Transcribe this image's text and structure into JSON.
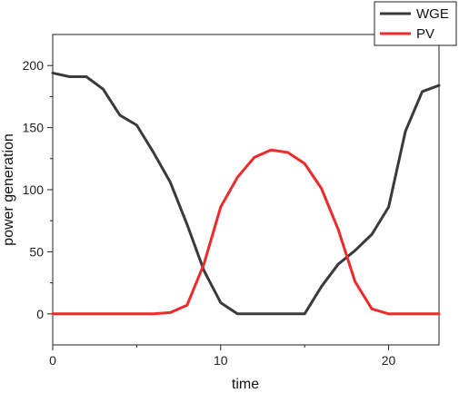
{
  "chart_data": {
    "type": "line",
    "xlabel": "time",
    "ylabel": "power generation",
    "xlim": [
      0,
      23
    ],
    "ylim": [
      -25,
      225
    ],
    "x_ticks": [
      0,
      10,
      20
    ],
    "y_ticks": [
      0,
      50,
      100,
      150,
      200
    ],
    "x": [
      0,
      1,
      2,
      3,
      4,
      5,
      6,
      7,
      8,
      9,
      10,
      11,
      12,
      13,
      14,
      15,
      16,
      17,
      18,
      19,
      20,
      21,
      22,
      23
    ],
    "series": [
      {
        "name": "WGE",
        "color": "#3a3a3a",
        "values": [
          194,
          191,
          191,
          181,
          160,
          152,
          130,
          106,
          72,
          35,
          9,
          0,
          0,
          0,
          0,
          0,
          22,
          40,
          51,
          64,
          86,
          147,
          179,
          184
        ]
      },
      {
        "name": "PV",
        "color": "#ee2a2a",
        "values": [
          0,
          0,
          0,
          0,
          0,
          0,
          0,
          1,
          7,
          40,
          86,
          110,
          126,
          132,
          130,
          121,
          101,
          68,
          26,
          4,
          0,
          0,
          0,
          0
        ]
      }
    ],
    "legend_position": "top-right"
  }
}
